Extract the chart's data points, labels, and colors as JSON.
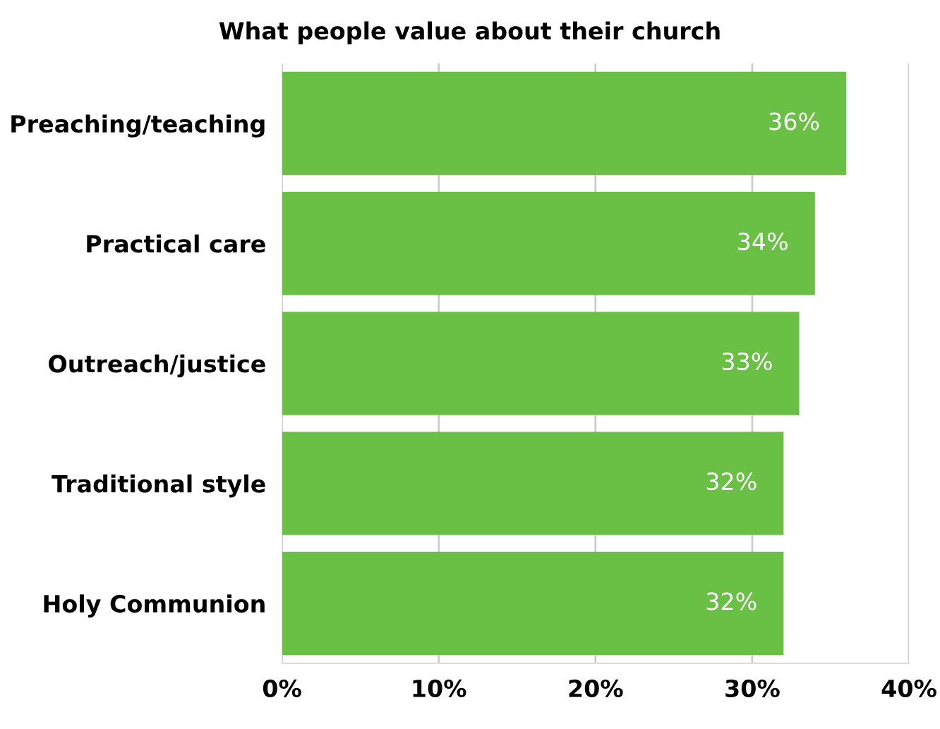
{
  "chart_data": {
    "type": "bar",
    "orientation": "horizontal",
    "title": "What people value about their church",
    "categories": [
      "Preaching/teaching",
      "Practical care",
      "Outreach/justice",
      "Traditional style",
      "Holy Communion"
    ],
    "values": [
      36,
      34,
      33,
      32,
      32
    ],
    "value_labels": [
      "36%",
      "34%",
      "33%",
      "32%",
      "32%"
    ],
    "color": "#6abf45",
    "xlim": [
      0,
      40
    ],
    "xticks": [
      {
        "value": 0,
        "label": "0%"
      },
      {
        "value": 10,
        "label": "10%"
      },
      {
        "value": 20,
        "label": "20%"
      },
      {
        "value": 30,
        "label": "30%"
      },
      {
        "value": 40,
        "label": "40%"
      }
    ],
    "grid": "x"
  }
}
